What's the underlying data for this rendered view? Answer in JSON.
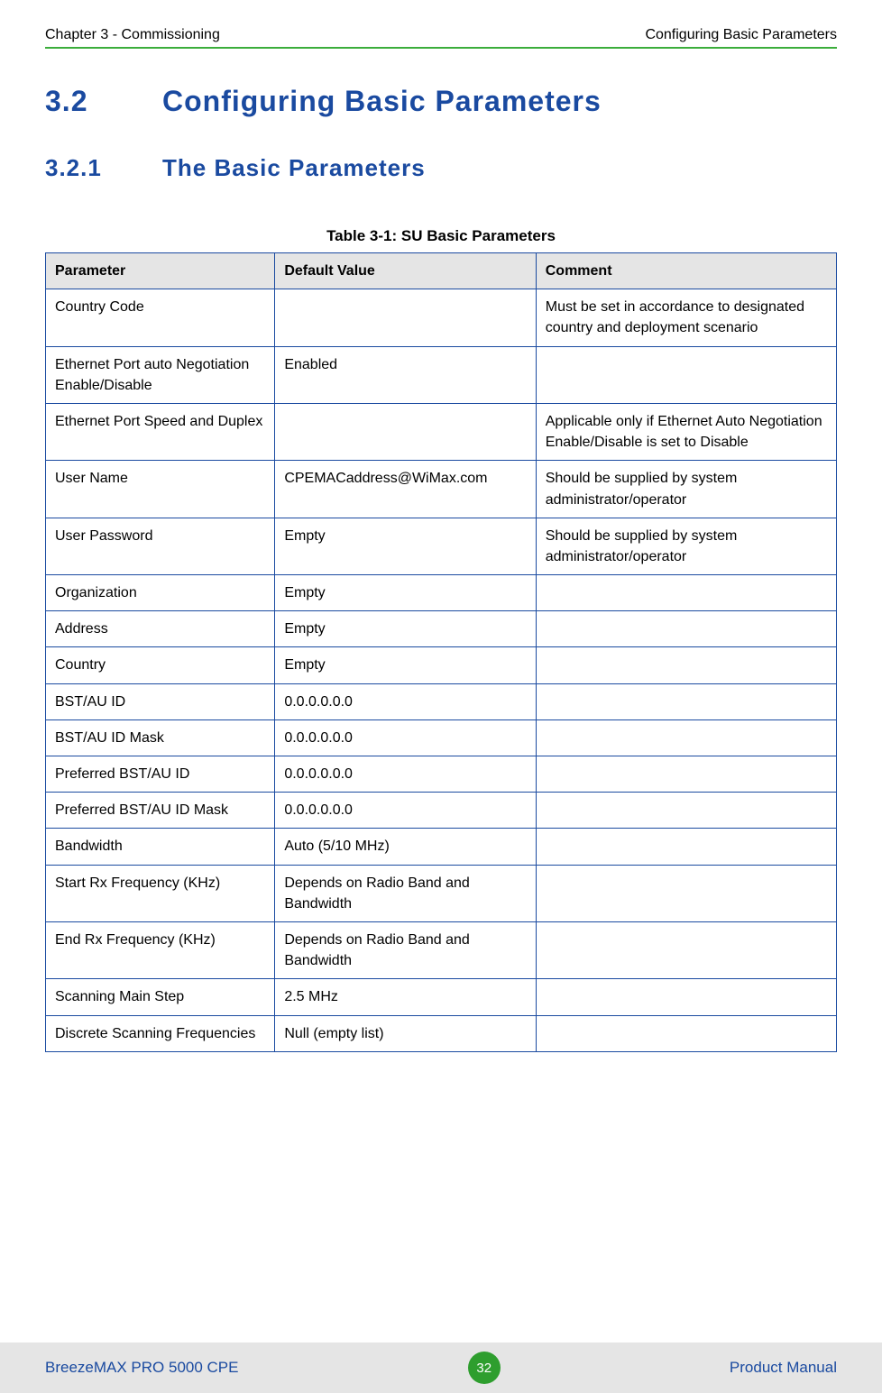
{
  "header": {
    "left": "Chapter 3 - Commissioning",
    "right": "Configuring Basic Parameters"
  },
  "section": {
    "number": "3.2",
    "title": "Configuring Basic Parameters"
  },
  "subsection": {
    "number": "3.2.1",
    "title": "The Basic Parameters"
  },
  "table": {
    "caption": "Table 3-1: SU Basic Parameters",
    "headers": {
      "c0": "Parameter",
      "c1": "Default Value",
      "c2": "Comment"
    },
    "rows": [
      {
        "c0": "Country Code",
        "c1": "",
        "c2": "Must be set in accordance to designated country and deployment scenario"
      },
      {
        "c0": "Ethernet Port auto Negotiation Enable/Disable",
        "c1": "Enabled",
        "c2": ""
      },
      {
        "c0": "Ethernet Port Speed and Duplex",
        "c1": "",
        "c2": "Applicable only if Ethernet Auto Negotiation Enable/Disable is set to Disable"
      },
      {
        "c0": "User Name",
        "c1": "CPEMACaddress@WiMax.com",
        "c2": "Should be supplied by system administrator/operator"
      },
      {
        "c0": "User Password",
        "c1": "Empty",
        "c2": "Should be supplied by system administrator/operator"
      },
      {
        "c0": "Organization",
        "c1": "Empty",
        "c2": ""
      },
      {
        "c0": "Address",
        "c1": "Empty",
        "c2": ""
      },
      {
        "c0": "Country",
        "c1": "Empty",
        "c2": ""
      },
      {
        "c0": "BST/AU ID",
        "c1": "0.0.0.0.0.0",
        "c2": ""
      },
      {
        "c0": "BST/AU ID Mask",
        "c1": "0.0.0.0.0.0",
        "c2": ""
      },
      {
        "c0": "Preferred BST/AU ID",
        "c1": "0.0.0.0.0.0",
        "c2": ""
      },
      {
        "c0": "Preferred BST/AU ID Mask",
        "c1": "0.0.0.0.0.0",
        "c2": ""
      },
      {
        "c0": "Bandwidth",
        "c1": "Auto (5/10 MHz)",
        "c2": ""
      },
      {
        "c0": "Start Rx Frequency (KHz)",
        "c1": "Depends on Radio Band and Bandwidth",
        "c2": ""
      },
      {
        "c0": "End Rx Frequency (KHz)",
        "c1": "Depends on Radio Band and Bandwidth",
        "c2": ""
      },
      {
        "c0": "Scanning Main Step",
        "c1": "2.5 MHz",
        "c2": ""
      },
      {
        "c0": "Discrete Scanning Frequencies",
        "c1": "Null (empty list)",
        "c2": ""
      }
    ]
  },
  "footer": {
    "left": "BreezeMAX PRO 5000 CPE",
    "page": "32",
    "right": "Product Manual"
  },
  "colors": {
    "heading": "#1a4aa0",
    "rule": "#3bad3b",
    "table_border": "#1a4aa0",
    "header_bg": "#e5e5e5",
    "footer_bg": "#e5e5e5",
    "badge_bg": "#2e9e2e"
  }
}
